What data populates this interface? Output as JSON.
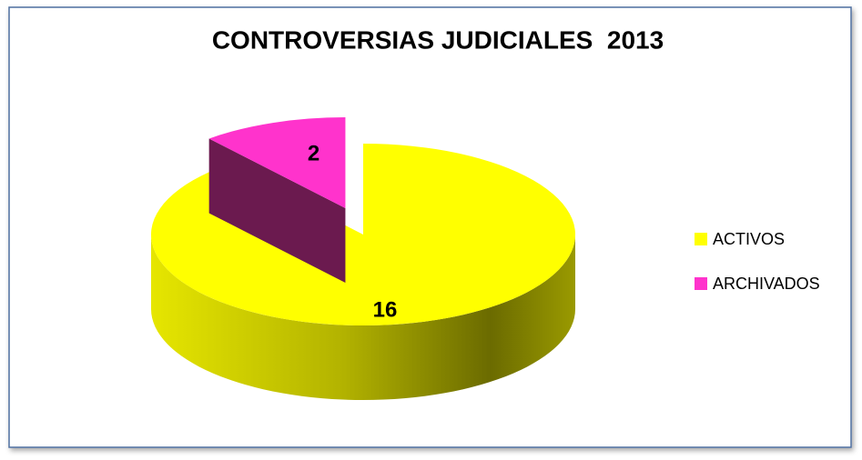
{
  "chart_data": {
    "type": "pie",
    "title": "CONTROVERSIAS JUDICIALES  2013",
    "categories": [
      "ACTIVOS",
      "ARCHIVADOS"
    ],
    "values": [
      16,
      2
    ],
    "colors": [
      "#ffff00",
      "#ff33cc"
    ],
    "legend": "right",
    "exploded": [
      false,
      true
    ],
    "3d": true
  }
}
